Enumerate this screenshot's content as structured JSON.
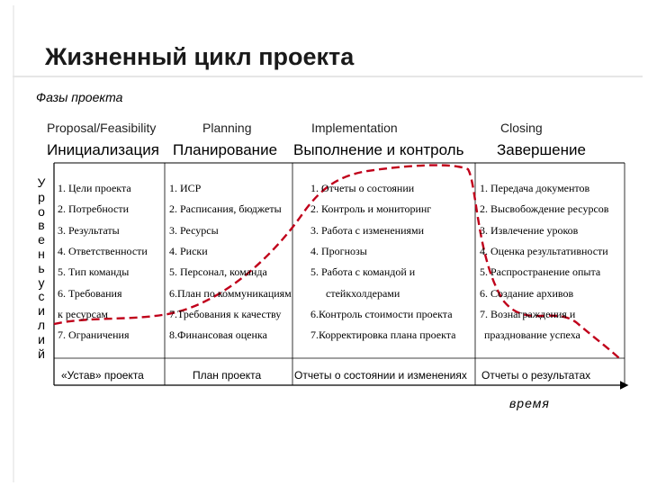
{
  "title": "Жизненный цикл проекта",
  "phases_label": "Фазы проекта",
  "y_axis_label": "Уровень усилий",
  "x_axis_label": "время",
  "phases": [
    {
      "english": "Proposal/Feasibility",
      "russian": "Инициализация",
      "items": [
        "1. Цели проекта",
        "2. Потребности",
        "3. Результаты",
        "4. Ответственности",
        "5. Тип команды",
        "6. Требования",
        "к ресурсам",
        "7. Ограничения"
      ],
      "outcome": "«Устав» проекта"
    },
    {
      "english": "Planning",
      "russian": "Планирование",
      "items": [
        "1. ИСР",
        "2. Расписания, бюджеты",
        "3. Ресурсы",
        "4. Риски",
        "5. Персонал, команда",
        "6.План по коммуникациям",
        "7.Требования к качеству",
        "8.Финансовая оценка"
      ],
      "outcome": "План проекта"
    },
    {
      "english": "Implementation",
      "russian": "Выполнение и контроль",
      "items": [
        "1. Отчеты о состоянии",
        "2. Контроль и мониторинг",
        "3. Работа с изменениями",
        "4. Прогнозы",
        "5. Работа с командой и",
        "стейкхолдерами",
        "6.Контроль стоимости проекта",
        "7.Корректировка плана проекта"
      ],
      "outcome": "Отчеты о состоянии и изменениях"
    },
    {
      "english": "Closing",
      "russian": "Завершение",
      "items": [
        "1. Передача документов",
        "2. Высвобождение ресурсов",
        "3. Извлечение уроков",
        "4. Оценка результативности",
        "5. Распространение опыта",
        "6. Создание архивов",
        "7. Вознаграждения и",
        "празднование успеха"
      ],
      "outcome": "Отчеты о результатах"
    }
  ],
  "colors": {
    "curve": "#c0001a",
    "grid": "#000000"
  }
}
